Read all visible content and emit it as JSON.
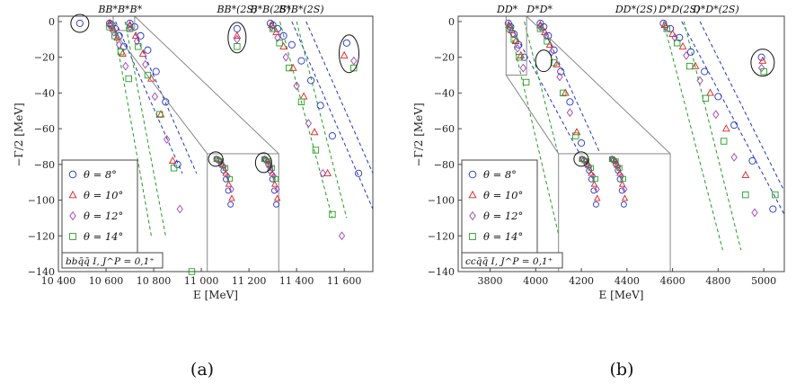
{
  "colors": {
    "theta8": "#2233cc",
    "theta10": "#e02020",
    "theta12": "#a040b0",
    "theta14": "#20a020",
    "frame": "#444444",
    "inset": "#888888"
  },
  "chart_data": [
    {
      "type": "scatter",
      "caption": "(a)",
      "xlabel": "E [MeV]",
      "ylabel": "−Γ/2  [MeV]",
      "xlim": [
        10400,
        11720
      ],
      "ylim": [
        -140,
        3
      ],
      "xticks": [
        10400,
        10600,
        10800,
        11000,
        11200,
        11400,
        11600
      ],
      "xtick_labels": [
        "10 400",
        "10 600",
        "10 800",
        "11 000",
        "11 200",
        "11 400",
        "11 600"
      ],
      "yticks": [
        0,
        -20,
        -40,
        -60,
        -80,
        -100,
        -120,
        -140
      ],
      "ytick_labels": [
        "0",
        "−20",
        "−40",
        "−60",
        "−80",
        "−100",
        "−120",
        "−140"
      ],
      "thresholds": [
        {
          "label": "BB*",
          "x": 10608
        },
        {
          "label": "B*B*",
          "x": 10700
        },
        {
          "label": "BB*(2S)",
          "x": 11150
        },
        {
          "label": "B*B(2S)",
          "x": 11290
        },
        {
          "label": "B*B*(2S)",
          "x": 11420
        }
      ],
      "legend": {
        "position": "bottom-left",
        "entries": [
          {
            "label": "θ = 8°",
            "marker": "circle",
            "color": "theta8"
          },
          {
            "label": "θ = 10°",
            "marker": "triangle",
            "color": "theta10"
          },
          {
            "label": "θ = 12°",
            "marker": "diamond",
            "color": "theta12"
          },
          {
            "label": "θ = 14°",
            "marker": "square",
            "color": "theta14"
          }
        ]
      },
      "note": "bbq̄q̄   I, J^P = 0,1⁺",
      "inset_frame": {
        "x": [
          10630,
          10720
        ],
        "y": [
          -5,
          3
        ]
      },
      "inset_window": {
        "x": [
          11025,
          11325
        ],
        "y": [
          -140,
          -74
        ]
      },
      "dashed_lines": [
        {
          "color": "theta8",
          "from": [
            10640,
            0
          ],
          "to": [
            10920,
            -85
          ]
        },
        {
          "color": "theta8",
          "from": [
            10700,
            0
          ],
          "to": [
            10980,
            -85
          ]
        },
        {
          "color": "theta14",
          "from": [
            10630,
            0
          ],
          "to": [
            10790,
            -120
          ]
        },
        {
          "color": "theta14",
          "from": [
            10680,
            0
          ],
          "to": [
            10850,
            -120
          ]
        },
        {
          "color": "theta8",
          "from": [
            11380,
            0
          ],
          "to": [
            11720,
            -105
          ]
        },
        {
          "color": "theta8",
          "from": [
            11440,
            0
          ],
          "to": [
            11720,
            -85
          ]
        },
        {
          "color": "theta14",
          "from": [
            11330,
            0
          ],
          "to": [
            11550,
            -110
          ]
        },
        {
          "color": "theta14",
          "from": [
            11400,
            0
          ],
          "to": [
            11610,
            -110
          ]
        }
      ],
      "series": [
        {
          "name": "θ = 8°",
          "marker": "circle",
          "color": "theta8",
          "x": [
            10490,
            10615,
            10625,
            10638,
            10655,
            10675,
            10700,
            10720,
            10745,
            10775,
            10810,
            10850,
            10900,
            11150,
            11290,
            11300,
            11320,
            11345,
            11380,
            11420,
            11460,
            11500,
            11550,
            11610,
            11660
          ],
          "y": [
            -1,
            -1,
            -2,
            -4,
            -8,
            -14,
            -1,
            -3,
            -8,
            -16,
            -28,
            -45,
            -80,
            -4,
            -1,
            -2,
            -4,
            -8,
            -13,
            -22,
            -33,
            -47,
            -64,
            -12,
            -85
          ]
        },
        {
          "name": "θ = 10°",
          "marker": "triangle",
          "color": "theta10",
          "x": [
            10615,
            10630,
            10648,
            10670,
            10700,
            10725,
            10755,
            10790,
            10830,
            10880,
            11150,
            11295,
            11315,
            11345,
            11385,
            11430,
            11475,
            11530,
            11600
          ],
          "y": [
            -1,
            -4,
            -9,
            -18,
            -2,
            -8,
            -18,
            -32,
            -52,
            -78,
            -8,
            -2,
            -6,
            -14,
            -26,
            -42,
            -62,
            -85,
            -19
          ]
        },
        {
          "name": "θ = 12°",
          "marker": "diamond",
          "color": "theta12",
          "x": [
            10615,
            10633,
            10655,
            10682,
            10700,
            10730,
            10765,
            10805,
            10855,
            10910,
            11150,
            11295,
            11320,
            11355,
            11400,
            11450,
            11510,
            11590,
            11640
          ],
          "y": [
            -2,
            -6,
            -13,
            -25,
            -3,
            -11,
            -24,
            -42,
            -66,
            -105,
            -10,
            -3,
            -9,
            -20,
            -36,
            -57,
            -85,
            -120,
            -22
          ]
        },
        {
          "name": "θ = 14°",
          "marker": "square",
          "color": "theta14",
          "x": [
            10615,
            10637,
            10662,
            10695,
            10700,
            10735,
            10775,
            10825,
            10885,
            10960,
            11150,
            11300,
            11328,
            11368,
            11420,
            11480,
            11550,
            11640
          ],
          "y": [
            -3,
            -8,
            -17,
            -32,
            -4,
            -14,
            -30,
            -52,
            -82,
            -140,
            -14,
            -4,
            -12,
            -26,
            -45,
            -72,
            -108,
            -26
          ]
        }
      ]
    },
    {
      "type": "scatter",
      "caption": "(b)",
      "xlabel": "E [MeV]",
      "ylabel": "−Γ/2  [MeV]",
      "xlim": [
        3660,
        5090
      ],
      "ylim": [
        -140,
        3
      ],
      "xticks": [
        3800,
        4000,
        4200,
        4400,
        4600,
        4800,
        5000
      ],
      "xtick_labels": [
        "3800",
        "4000",
        "4200",
        "4400",
        "4600",
        "4800",
        "5000"
      ],
      "yticks": [
        0,
        -20,
        -40,
        -60,
        -80,
        -100,
        -120,
        -140
      ],
      "ytick_labels": [
        "0",
        "−20",
        "−40",
        "−60",
        "−80",
        "−100",
        "−120",
        "−140"
      ],
      "thresholds": [
        {
          "label": "DD*",
          "x": 3875
        },
        {
          "label": "D*D*",
          "x": 4017
        },
        {
          "label": "DD*(2S)",
          "x": 4440
        },
        {
          "label": "D*D(2S)",
          "x": 4630
        },
        {
          "label": "D*D*(2S)",
          "x": 4790
        }
      ],
      "legend": {
        "position": "bottom-left",
        "entries": [
          {
            "label": "θ = 8°",
            "marker": "circle",
            "color": "theta8"
          },
          {
            "label": "θ = 10°",
            "marker": "triangle",
            "color": "theta10"
          },
          {
            "label": "θ = 12°",
            "marker": "diamond",
            "color": "theta12"
          },
          {
            "label": "θ = 14°",
            "marker": "square",
            "color": "theta14"
          }
        ]
      },
      "note": "ccq̄q̄   I, J^P = 0,1⁺",
      "inset_frame": {
        "x": [
          3870,
          3960
        ],
        "y": [
          -30,
          3
        ]
      },
      "inset_window": {
        "x": [
          4100,
          4590
        ],
        "y": [
          -140,
          -74
        ]
      },
      "dashed_lines": [
        {
          "color": "theta8",
          "from": [
            3880,
            0
          ],
          "to": [
            4260,
            -90
          ]
        },
        {
          "color": "theta8",
          "from": [
            4020,
            0
          ],
          "to": [
            4340,
            -90
          ]
        },
        {
          "color": "theta14",
          "from": [
            3880,
            0
          ],
          "to": [
            4120,
            -130
          ]
        },
        {
          "color": "theta14",
          "from": [
            3950,
            0
          ],
          "to": [
            4210,
            -130
          ]
        },
        {
          "color": "theta8",
          "from": [
            4640,
            0
          ],
          "to": [
            5090,
            -108
          ]
        },
        {
          "color": "theta8",
          "from": [
            4720,
            0
          ],
          "to": [
            5090,
            -95
          ]
        },
        {
          "color": "theta14",
          "from": [
            4560,
            0
          ],
          "to": [
            4820,
            -128
          ]
        },
        {
          "color": "theta14",
          "from": [
            4650,
            0
          ],
          "to": [
            4900,
            -128
          ]
        }
      ],
      "series": [
        {
          "name": "θ = 8°",
          "marker": "circle",
          "color": "theta8",
          "x": [
            3880,
            3890,
            3905,
            3925,
            3950,
            4020,
            4035,
            4055,
            4080,
            4110,
            4150,
            4200,
            4250,
            4560,
            4590,
            4630,
            4680,
            4740,
            4800,
            4870,
            4950,
            4990,
            5040
          ],
          "y": [
            -1,
            -3,
            -7,
            -13,
            -20,
            -1,
            -3,
            -8,
            -16,
            -28,
            -45,
            -68,
            -85,
            -1,
            -4,
            -9,
            -17,
            -28,
            -42,
            -58,
            -78,
            -20,
            -105
          ]
        },
        {
          "name": "θ = 10°",
          "marker": "triangle",
          "color": "theta10",
          "x": [
            3882,
            3895,
            3912,
            3935,
            4020,
            4040,
            4062,
            4092,
            4130,
            4180,
            4235,
            4565,
            4600,
            4645,
            4700,
            4765,
            4835,
            4920,
            4995
          ],
          "y": [
            -2,
            -5,
            -11,
            -19,
            -2,
            -6,
            -13,
            -24,
            -40,
            -62,
            -88,
            -2,
            -7,
            -14,
            -25,
            -40,
            -60,
            -86,
            -22
          ]
        },
        {
          "name": "θ = 12°",
          "marker": "diamond",
          "color": "theta12",
          "x": [
            3884,
            3900,
            3920,
            3945,
            4020,
            4045,
            4070,
            4105,
            4150,
            4205,
            4570,
            4610,
            4660,
            4720,
            4790,
            4870,
            4960,
            4990
          ],
          "y": [
            -3,
            -7,
            -15,
            -26,
            -3,
            -8,
            -17,
            -31,
            -51,
            -79,
            -3,
            -9,
            -19,
            -33,
            -52,
            -76,
            -107,
            -26
          ]
        },
        {
          "name": "θ = 14°",
          "marker": "square",
          "color": "theta14",
          "x": [
            3886,
            3905,
            3928,
            3958,
            4020,
            4050,
            4080,
            4120,
            4175,
            4245,
            4575,
            4620,
            4675,
            4745,
            4825,
            4920,
            5000,
            5050
          ],
          "y": [
            -4,
            -10,
            -20,
            -34,
            -4,
            -11,
            -23,
            -40,
            -64,
            -96,
            -4,
            -12,
            -25,
            -43,
            -67,
            -97,
            -28,
            -97
          ]
        }
      ]
    }
  ]
}
